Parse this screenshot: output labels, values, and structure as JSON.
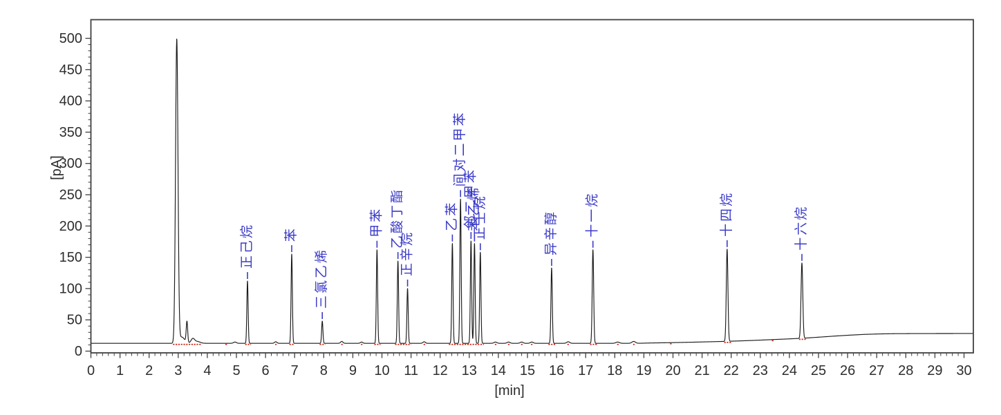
{
  "axes": {
    "x_label": "[min]",
    "y_label": "[pA]",
    "x_ticks": [
      0,
      1,
      2,
      3,
      4,
      5,
      6,
      7,
      8,
      9,
      10,
      11,
      12,
      13,
      14,
      15,
      16,
      17,
      18,
      19,
      20,
      21,
      22,
      23,
      24,
      25,
      26,
      27,
      28,
      29,
      30
    ],
    "y_ticks": [
      0,
      50,
      100,
      150,
      200,
      250,
      300,
      350,
      400,
      450,
      500
    ],
    "x_minor_step": 0.2,
    "y_minor_step": 10,
    "x_range": [
      0,
      30
    ],
    "y_range": [
      0,
      530
    ],
    "grid": "off",
    "legend": "none"
  },
  "colors": {
    "trace": "#1a1a1a",
    "peak_label": "#3a3ac8",
    "axis_text": "#2d2d2d",
    "frame": "#3f3f3f",
    "integration_mark": "#cc2a1a",
    "background": "#ffffff"
  },
  "chart_data": {
    "type": "line",
    "title": "",
    "xlabel": "[min]",
    "ylabel": "[pA]",
    "xlim": [
      0,
      30
    ],
    "ylim": [
      0,
      530
    ],
    "baseline_points": [
      [
        0,
        12.5
      ],
      [
        18.8,
        12.5
      ],
      [
        19.2,
        13
      ],
      [
        20,
        13.6
      ],
      [
        20.6,
        14.2
      ],
      [
        21.2,
        14.9
      ],
      [
        21.8,
        15.6
      ],
      [
        22.4,
        16.5
      ],
      [
        23,
        17.6
      ],
      [
        23.6,
        18.8
      ],
      [
        24.1,
        19.8
      ],
      [
        24.6,
        21
      ],
      [
        25.1,
        22.6
      ],
      [
        25.6,
        24.2
      ],
      [
        26.1,
        25.6
      ],
      [
        26.6,
        26.8
      ],
      [
        27.1,
        27.5
      ],
      [
        27.6,
        27.9
      ],
      [
        28.5,
        28.1
      ],
      [
        30.3,
        28.2
      ]
    ],
    "peaks": [
      {
        "t": 2.95,
        "apex_pa": 497,
        "sigma": 0.042,
        "label": ""
      },
      {
        "t": 3.3,
        "apex_pa": 46,
        "sigma": 0.025,
        "label": ""
      },
      {
        "t": 5.38,
        "apex_pa": 112,
        "sigma": 0.022,
        "label": "正己烷"
      },
      {
        "t": 6.9,
        "apex_pa": 155,
        "sigma": 0.022,
        "label": "苯"
      },
      {
        "t": 7.95,
        "apex_pa": 48,
        "sigma": 0.022,
        "label": "三氯乙烯"
      },
      {
        "t": 9.83,
        "apex_pa": 162,
        "sigma": 0.022,
        "label": "甲苯"
      },
      {
        "t": 10.55,
        "apex_pa": 144,
        "sigma": 0.022,
        "label": "乙酸丁酯"
      },
      {
        "t": 10.88,
        "apex_pa": 100,
        "sigma": 0.022,
        "label": "正辛烷"
      },
      {
        "t": 12.42,
        "apex_pa": 172,
        "sigma": 0.022,
        "label": "乙苯"
      },
      {
        "t": 12.7,
        "apex_pa": 243,
        "sigma": 0.022,
        "label": "间对二甲苯"
      },
      {
        "t": 13.06,
        "apex_pa": 176,
        "sigma": 0.022,
        "label": "邻二甲苯"
      },
      {
        "t": 13.18,
        "apex_pa": 172,
        "sigma": 0.022,
        "label": "苯乙烯"
      },
      {
        "t": 13.38,
        "apex_pa": 158,
        "sigma": 0.022,
        "label": "正壬烷"
      },
      {
        "t": 15.83,
        "apex_pa": 133,
        "sigma": 0.023,
        "label": "异辛醇"
      },
      {
        "t": 17.25,
        "apex_pa": 162,
        "sigma": 0.025,
        "label": "十一烷"
      },
      {
        "t": 21.86,
        "apex_pa": 163,
        "sigma": 0.028,
        "label": "十四烷"
      },
      {
        "t": 24.43,
        "apex_pa": 141,
        "sigma": 0.03,
        "label": "十六烷"
      }
    ],
    "minor_bumps": [
      {
        "t": 3.12,
        "h": 10,
        "sigma": 0.1
      },
      {
        "t": 3.5,
        "h": 7,
        "sigma": 0.06
      },
      {
        "t": 3.65,
        "h": 3,
        "sigma": 0.1
      },
      {
        "t": 4.95,
        "h": 2,
        "sigma": 0.05
      },
      {
        "t": 6.35,
        "h": 2.5,
        "sigma": 0.04
      },
      {
        "t": 8.62,
        "h": 3,
        "sigma": 0.04
      },
      {
        "t": 9.3,
        "h": 2,
        "sigma": 0.04
      },
      {
        "t": 11.45,
        "h": 2.5,
        "sigma": 0.04
      },
      {
        "t": 13.9,
        "h": 2,
        "sigma": 0.05
      },
      {
        "t": 14.35,
        "h": 2,
        "sigma": 0.05
      },
      {
        "t": 14.8,
        "h": 2,
        "sigma": 0.05
      },
      {
        "t": 15.15,
        "h": 2,
        "sigma": 0.05
      },
      {
        "t": 16.4,
        "h": 2.5,
        "sigma": 0.05
      },
      {
        "t": 18.1,
        "h": 2,
        "sigma": 0.06
      },
      {
        "t": 18.65,
        "h": 3,
        "sigma": 0.06
      }
    ],
    "integration_marks": [
      [
        2.82,
        3.78
      ],
      [
        5.3,
        5.5
      ],
      [
        6.82,
        7.0
      ],
      [
        7.86,
        8.05
      ],
      [
        9.74,
        9.95
      ],
      [
        10.45,
        11.0
      ],
      [
        12.3,
        13.5
      ],
      [
        15.72,
        15.95
      ],
      [
        17.15,
        17.4
      ],
      [
        21.76,
        22.0
      ],
      [
        24.33,
        24.6
      ],
      [
        4.62,
        4.68
      ],
      [
        6.33,
        6.38
      ],
      [
        8.6,
        8.66
      ],
      [
        9.28,
        9.33
      ],
      [
        11.43,
        11.49
      ],
      [
        13.88,
        13.94
      ],
      [
        14.33,
        14.39
      ],
      [
        14.78,
        14.84
      ],
      [
        15.12,
        15.18
      ],
      [
        16.37,
        16.43
      ],
      [
        18.08,
        18.14
      ],
      [
        18.63,
        18.7
      ],
      [
        19.9,
        19.96
      ],
      [
        23.4,
        23.46
      ]
    ]
  }
}
